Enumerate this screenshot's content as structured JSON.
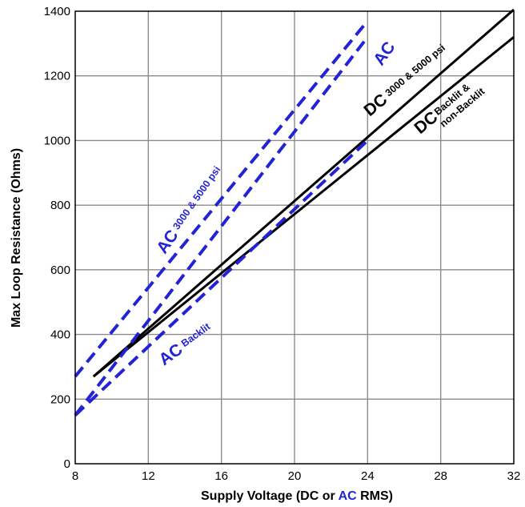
{
  "colors": {
    "ac": "#2323d6",
    "dc": "#000000",
    "grid": "#8c8c8c"
  },
  "chart_data": {
    "type": "line",
    "xlabel_parts": [
      "Supply Voltage (DC or ",
      "AC",
      " RMS)"
    ],
    "ylabel": "Max Loop Resistance (Ohms)",
    "xlim": [
      8,
      32
    ],
    "ylim": [
      0,
      1400
    ],
    "x_ticks": [
      8,
      12,
      16,
      20,
      24,
      28,
      32
    ],
    "y_ticks": [
      0,
      200,
      400,
      600,
      800,
      1000,
      1200,
      1400
    ],
    "grid": true,
    "series": [
      {
        "style": "solid",
        "color": "dc",
        "points": [
          [
            9,
            270
          ],
          [
            32,
            1405
          ]
        ]
      },
      {
        "style": "solid",
        "color": "dc",
        "points": [
          [
            9,
            270
          ],
          [
            32,
            1320
          ]
        ]
      },
      {
        "style": "dashed",
        "color": "ac",
        "points": [
          [
            8,
            270
          ],
          [
            24,
            1370
          ]
        ]
      },
      {
        "style": "dashed",
        "color": "ac",
        "points": [
          [
            8,
            150
          ],
          [
            24,
            1320
          ]
        ]
      },
      {
        "style": "dashed",
        "color": "ac",
        "points": [
          [
            8,
            150
          ],
          [
            24,
            1000
          ]
        ]
      }
    ],
    "annotations": {
      "dc_top": {
        "main": "DC",
        "sub": "3000 & 5000 psi"
      },
      "dc_bottom": {
        "main": "DC",
        "sub1": "Backlit &",
        "sub2": "non-Backlit"
      },
      "ac_left": {
        "main": "AC",
        "sub": "3000 & 5000 psi"
      },
      "ac_mid": {
        "main": "AC"
      },
      "ac_bottom": {
        "main": "AC",
        "sub": "Backlit"
      }
    }
  }
}
